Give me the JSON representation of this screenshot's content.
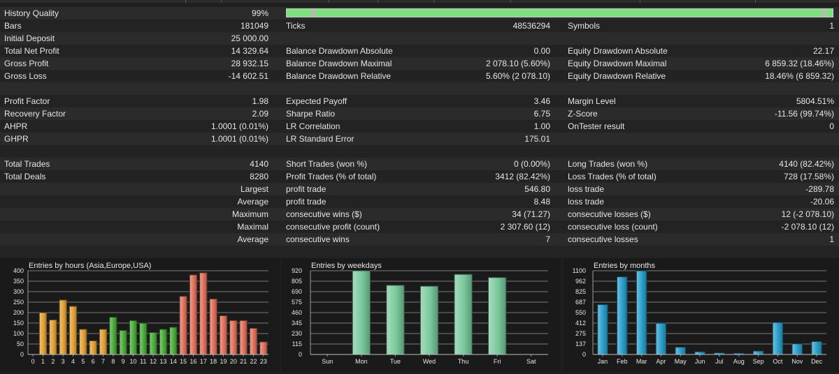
{
  "history_quality": {
    "label": "History Quality",
    "value": "99%",
    "level": 0.99
  },
  "stats": {
    "bars": {
      "label": "Bars",
      "value": "181049"
    },
    "ticks": {
      "label": "Ticks",
      "value": "48536294"
    },
    "symbols": {
      "label": "Symbols",
      "value": "1"
    },
    "initial_deposit": {
      "label": "Initial Deposit",
      "value": "25 000.00"
    },
    "total_net_profit": {
      "label": "Total Net Profit",
      "value": "14 329.64"
    },
    "balance_dd_abs": {
      "label": "Balance Drawdown Absolute",
      "value": "0.00"
    },
    "equity_dd_abs": {
      "label": "Equity Drawdown Absolute",
      "value": "22.17"
    },
    "gross_profit": {
      "label": "Gross Profit",
      "value": "28 932.15"
    },
    "balance_dd_max": {
      "label": "Balance Drawdown Maximal",
      "value": "2 078.10 (5.60%)"
    },
    "equity_dd_max": {
      "label": "Equity Drawdown Maximal",
      "value": "6 859.32 (18.46%)"
    },
    "gross_loss": {
      "label": "Gross Loss",
      "value": "-14 602.51"
    },
    "balance_dd_rel": {
      "label": "Balance Drawdown Relative",
      "value": "5.60% (2 078.10)"
    },
    "equity_dd_rel": {
      "label": "Equity Drawdown Relative",
      "value": "18.46% (6 859.32)"
    },
    "profit_factor": {
      "label": "Profit Factor",
      "value": "1.98"
    },
    "expected_payoff": {
      "label": "Expected Payoff",
      "value": "3.46"
    },
    "margin_level": {
      "label": "Margin Level",
      "value": "5804.51%"
    },
    "recovery_factor": {
      "label": "Recovery Factor",
      "value": "2.09"
    },
    "sharpe_ratio": {
      "label": "Sharpe Ratio",
      "value": "6.75"
    },
    "z_score": {
      "label": "Z-Score",
      "value": "-11.56 (99.74%)"
    },
    "ahpr": {
      "label": "AHPR",
      "value": "1.0001 (0.01%)"
    },
    "lr_correlation": {
      "label": "LR Correlation",
      "value": "1.00"
    },
    "ontester": {
      "label": "OnTester result",
      "value": "0"
    },
    "ghpr": {
      "label": "GHPR",
      "value": "1.0001 (0.01%)"
    },
    "lr_std_error": {
      "label": "LR Standard Error",
      "value": "175.01"
    },
    "total_trades": {
      "label": "Total Trades",
      "value": "4140"
    },
    "short_trades": {
      "label": "Short Trades (won %)",
      "value": "0 (0.00%)"
    },
    "long_trades": {
      "label": "Long Trades (won %)",
      "value": "4140 (82.42%)"
    },
    "total_deals": {
      "label": "Total Deals",
      "value": "8280"
    },
    "profit_trades": {
      "label": "Profit Trades (% of total)",
      "value": "3412 (82.42%)"
    },
    "loss_trades": {
      "label": "Loss Trades (% of total)",
      "value": "728 (17.58%)"
    }
  },
  "details": [
    {
      "prefix": "Largest",
      "mid_label": "profit trade",
      "mid_value": "546.80",
      "right_label": "loss trade",
      "right_value": "-289.78"
    },
    {
      "prefix": "Average",
      "mid_label": "profit trade",
      "mid_value": "8.48",
      "right_label": "loss trade",
      "right_value": "-20.06"
    },
    {
      "prefix": "Maximum",
      "mid_label": "consecutive wins ($)",
      "mid_value": "34 (71.27)",
      "right_label": "consecutive losses ($)",
      "right_value": "12 (-2 078.10)"
    },
    {
      "prefix": "Maximal",
      "mid_label": "consecutive profit (count)",
      "mid_value": "2 307.60 (12)",
      "right_label": "consecutive loss (count)",
      "right_value": "-2 078.10 (12)"
    },
    {
      "prefix": "Average",
      "mid_label": "consecutive wins",
      "mid_value": "7",
      "right_label": "consecutive losses",
      "right_value": "1"
    }
  ],
  "chart_data": [
    {
      "type": "bar",
      "title": "Entries by hours (Asia,Europe,USA)",
      "categories": [
        "0",
        "1",
        "2",
        "3",
        "4",
        "5",
        "6",
        "7",
        "8",
        "9",
        "10",
        "11",
        "12",
        "13",
        "14",
        "15",
        "16",
        "17",
        "18",
        "19",
        "20",
        "21",
        "22",
        "23"
      ],
      "values": [
        0,
        200,
        165,
        260,
        230,
        120,
        65,
        120,
        178,
        115,
        162,
        150,
        105,
        120,
        130,
        278,
        380,
        390,
        265,
        185,
        162,
        162,
        125,
        60
      ],
      "yticks": [
        "0",
        "50",
        "100",
        "150",
        "200",
        "250",
        "300",
        "350",
        "400"
      ],
      "ylim": [
        0,
        400
      ],
      "colors": [
        "#e3a13a",
        "#e3a13a",
        "#e3a13a",
        "#e3a13a",
        "#e3a13a",
        "#e3a13a",
        "#e3a13a",
        "#e3a13a",
        "#4cac3d",
        "#4cac3d",
        "#4cac3d",
        "#4cac3d",
        "#4cac3d",
        "#4cac3d",
        "#4cac3d",
        "#e0725d",
        "#e0725d",
        "#e0725d",
        "#e0725d",
        "#e0725d",
        "#e0725d",
        "#e0725d",
        "#e0725d",
        "#e0725d"
      ]
    },
    {
      "type": "bar",
      "title": "Entries by weekdays",
      "categories": [
        "Sun",
        "Mon",
        "Tue",
        "Wed",
        "Thu",
        "Fri",
        "Sat"
      ],
      "values": [
        0,
        920,
        760,
        750,
        880,
        845,
        0
      ],
      "yticks": [
        "0",
        "115",
        "230",
        "345",
        "460",
        "575",
        "690",
        "805",
        "920"
      ],
      "ylim": [
        0,
        920
      ],
      "colors": [
        "#79c89c"
      ]
    },
    {
      "type": "bar",
      "title": "Entries by months",
      "categories": [
        "Jan",
        "Feb",
        "Mar",
        "Apr",
        "May",
        "Jun",
        "Jul",
        "Aug",
        "Sep",
        "Oct",
        "Nov",
        "Dec"
      ],
      "values": [
        655,
        1020,
        1100,
        410,
        95,
        35,
        20,
        15,
        45,
        420,
        140,
        170
      ],
      "yticks": [
        "0",
        "137",
        "275",
        "412",
        "550",
        "687",
        "825",
        "962",
        "1100"
      ],
      "ylim": [
        0,
        1100
      ],
      "colors": [
        "#2a9dc9"
      ]
    }
  ]
}
